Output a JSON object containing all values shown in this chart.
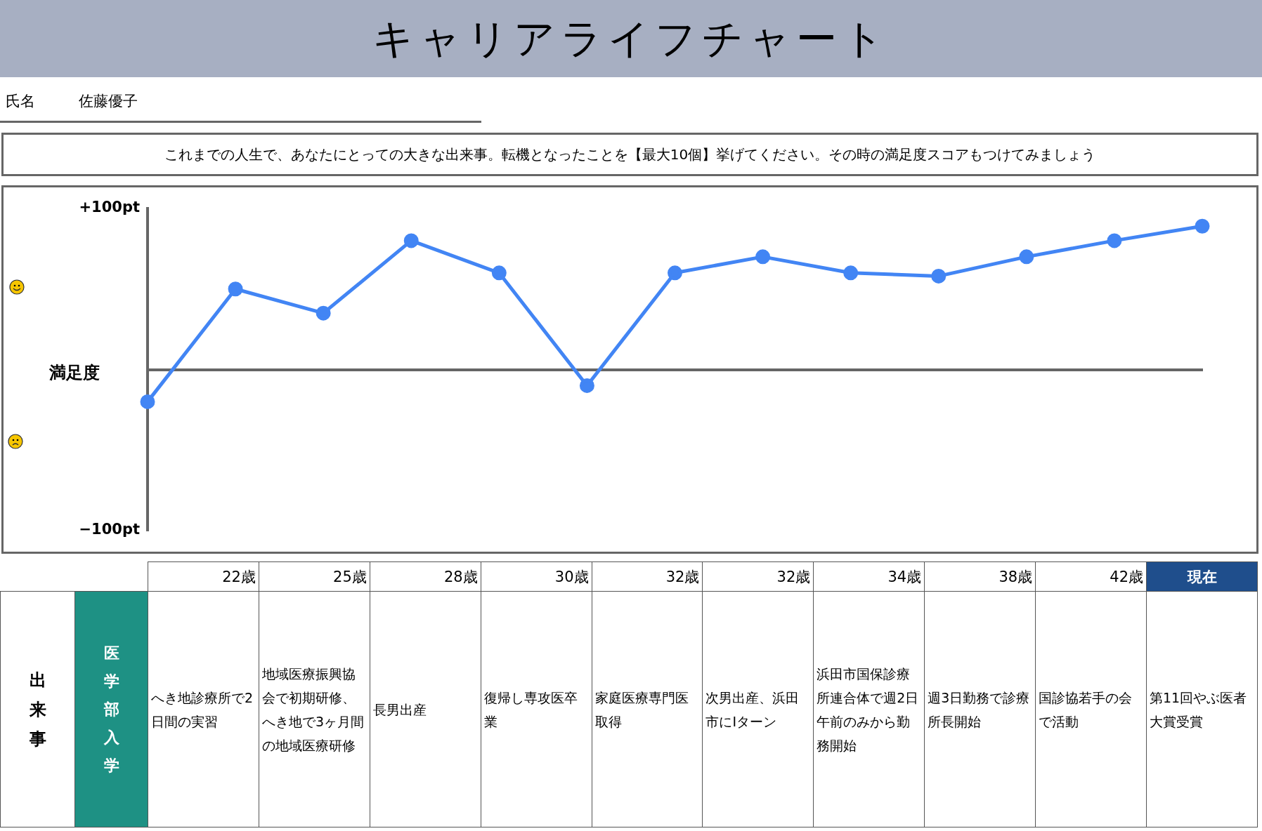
{
  "chart_data": {
    "type": "line",
    "title": "キャリアライフチャート",
    "ylabel": "満足度",
    "categories": [
      null,
      null,
      null,
      null,
      null,
      null,
      null,
      null,
      null,
      null,
      null,
      null,
      null
    ],
    "series": [
      {
        "color": "#4285f4",
        "values": [
          -20,
          50,
          35,
          80,
          60,
          -10,
          60,
          70,
          60,
          58,
          70,
          80,
          89
        ]
      }
    ],
    "ylim": [
      -100,
      100
    ],
    "yticks": [
      {
        "value": -100,
        "label": "−100pt"
      },
      {
        "value": 100,
        "label": "+100pt"
      }
    ],
    "marker": "circle",
    "line_style": "solid",
    "grid": false,
    "legend": false,
    "tick_labels": "y",
    "annotations": [
      "氏名",
      "佐藤優子",
      "これまでの人生で、あなたにとっての大きな出来事。転機となったことを【最大10個】挙げてください。その時の満足度スコアもつけてみましょう",
      "出来事",
      "医学部入学",
      "22歳",
      "25歳",
      "28歳",
      "30歳",
      "32歳",
      "32歳",
      "34歳",
      "38歳",
      "42歳",
      "現在",
      "へき地診療所で2日間の実習",
      "地域医療振興協会で初期研修、へき地で3ヶ月間の地域医療研修",
      "長男出産",
      "復帰し専攻医卒業",
      "家庭医療専門医取得",
      "次男出産、浜田市にIターン",
      "浜田市国保診療所連合体で週2日午前のみから勤務開始",
      "週3日勤務で診療所長開始",
      "国診協若手の会で活動",
      "第11回やぶ医者大賞受賞"
    ]
  }
}
